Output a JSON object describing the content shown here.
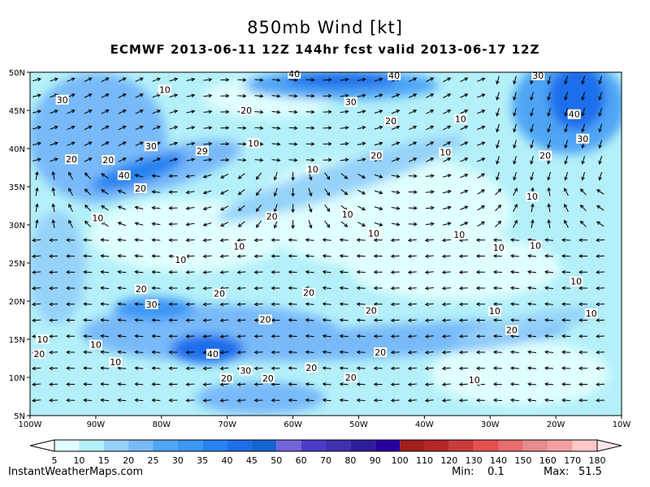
{
  "title": "850mb Wind [kt]",
  "subtitle": "ECMWF 2013-06-11 12Z 144hr fcst valid 2013-06-17 12Z",
  "map": {
    "lon_range": [
      -100,
      -10
    ],
    "lat_range": [
      5,
      50
    ],
    "lat_labels": [
      "50N",
      "45N",
      "40N",
      "35N",
      "30N",
      "25N",
      "20N",
      "15N",
      "10N",
      "5N"
    ],
    "lon_labels": [
      "100W",
      "90W",
      "80W",
      "70W",
      "60W",
      "50W",
      "40W",
      "30W",
      "20W",
      "10W"
    ],
    "contour_labels": [
      {
        "t": "30",
        "lon": -95.1,
        "lat": 46.4
      },
      {
        "t": "10",
        "lon": -79.5,
        "lat": 47.7
      },
      {
        "t": "20",
        "lon": -67.1,
        "lat": 45
      },
      {
        "t": "40",
        "lon": -59.8,
        "lat": 49.8
      },
      {
        "t": "30",
        "lon": -51.2,
        "lat": 46.1
      },
      {
        "t": "40",
        "lon": -44.6,
        "lat": 49.6
      },
      {
        "t": "20",
        "lon": -45.1,
        "lat": 43.6
      },
      {
        "t": "30",
        "lon": -22.7,
        "lat": 49.6
      },
      {
        "t": "40",
        "lon": -17.2,
        "lat": 44.5
      },
      {
        "t": "30",
        "lon": -15.9,
        "lat": 41.3
      },
      {
        "t": "20",
        "lon": -21.6,
        "lat": 39.1
      },
      {
        "t": "10",
        "lon": -34.5,
        "lat": 43.9
      },
      {
        "t": "10",
        "lon": -36.8,
        "lat": 39.5
      },
      {
        "t": "20",
        "lon": -47.3,
        "lat": 39.1
      },
      {
        "t": "10",
        "lon": -57,
        "lat": 37.3
      },
      {
        "t": "10",
        "lon": -66,
        "lat": 40.7
      },
      {
        "t": "29",
        "lon": -73.8,
        "lat": 39.7
      },
      {
        "t": "30",
        "lon": -81.6,
        "lat": 40.3
      },
      {
        "t": "20",
        "lon": -88.1,
        "lat": 38.5
      },
      {
        "t": "20",
        "lon": -93.7,
        "lat": 38.6
      },
      {
        "t": "40",
        "lon": -85.7,
        "lat": 36.5
      },
      {
        "t": "20",
        "lon": -83.2,
        "lat": 34.8
      },
      {
        "t": "10",
        "lon": -89.7,
        "lat": 30.9
      },
      {
        "t": "20",
        "lon": -63.2,
        "lat": 31.1
      },
      {
        "t": "10",
        "lon": -51.7,
        "lat": 31.4
      },
      {
        "t": "10",
        "lon": -47.7,
        "lat": 28.9
      },
      {
        "t": "10",
        "lon": -34.7,
        "lat": 28.7
      },
      {
        "t": "10",
        "lon": -28.7,
        "lat": 27
      },
      {
        "t": "10",
        "lon": -23.6,
        "lat": 33.7
      },
      {
        "t": "10",
        "lon": -23.1,
        "lat": 27.3
      },
      {
        "t": "10",
        "lon": -68.2,
        "lat": 27.2
      },
      {
        "t": "10",
        "lon": -77.1,
        "lat": 25.4
      },
      {
        "t": "20",
        "lon": -83.1,
        "lat": 21.6
      },
      {
        "t": "30",
        "lon": -81.5,
        "lat": 19.6
      },
      {
        "t": "20",
        "lon": -71.2,
        "lat": 21
      },
      {
        "t": "20",
        "lon": -57.6,
        "lat": 21.1
      },
      {
        "t": "20",
        "lon": -48.1,
        "lat": 18.8
      },
      {
        "t": "20",
        "lon": -64.2,
        "lat": 17.6
      },
      {
        "t": "10",
        "lon": -29.3,
        "lat": 18.7
      },
      {
        "t": "20",
        "lon": -26.7,
        "lat": 16.2
      },
      {
        "t": "10",
        "lon": -16.9,
        "lat": 22.6
      },
      {
        "t": "10",
        "lon": -14.6,
        "lat": 18.4
      },
      {
        "t": "10",
        "lon": -98.1,
        "lat": 15
      },
      {
        "t": "20",
        "lon": -98.6,
        "lat": 13.1
      },
      {
        "t": "10",
        "lon": -90,
        "lat": 14.3
      },
      {
        "t": "10",
        "lon": -87,
        "lat": 12
      },
      {
        "t": "40",
        "lon": -72.2,
        "lat": 13.1
      },
      {
        "t": "30",
        "lon": -67.2,
        "lat": 10.9
      },
      {
        "t": "20",
        "lon": -70.1,
        "lat": 9.9
      },
      {
        "t": "20",
        "lon": -63.8,
        "lat": 9.9
      },
      {
        "t": "20",
        "lon": -57.2,
        "lat": 11.3
      },
      {
        "t": "20",
        "lon": -51.2,
        "lat": 10
      },
      {
        "t": "20",
        "lon": -46.7,
        "lat": 13.3
      },
      {
        "t": "10",
        "lon": -32.4,
        "lat": 9.7
      }
    ]
  },
  "colorbar": {
    "labels": [
      "5",
      "10",
      "15",
      "20",
      "25",
      "30",
      "35",
      "40",
      "45",
      "50",
      "60",
      "70",
      "80",
      "90",
      "100",
      "110",
      "120",
      "130",
      "140",
      "150",
      "160",
      "170",
      "180"
    ],
    "colors": [
      "#e0ffff",
      "#b4f0fa",
      "#96d2fa",
      "#78b9fa",
      "#50a5f5",
      "#3c97f5",
      "#2882f0",
      "#1e6eeb",
      "#1464d2",
      "#7364dc",
      "#4b3cc8",
      "#4030b0",
      "#2d1e9b",
      "#2800a0",
      "#a01e1e",
      "#b42828",
      "#c83c3c",
      "#e65050",
      "#e66e6e",
      "#e68c8c",
      "#f5a0a0",
      "#ffc8c8"
    ]
  },
  "footer": {
    "site": "InstantWeatherMaps.com",
    "min_label": "Min:",
    "min_value": "0.1",
    "max_label": "Max:",
    "max_value": "51.5"
  }
}
